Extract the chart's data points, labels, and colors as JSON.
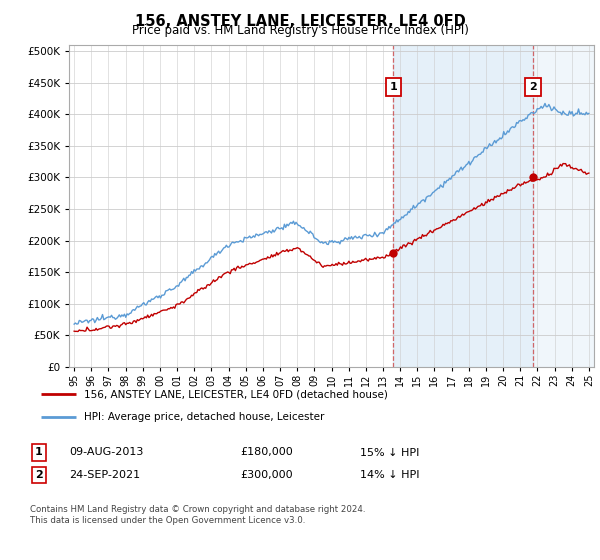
{
  "title": "156, ANSTEY LANE, LEICESTER, LE4 0FD",
  "subtitle": "Price paid vs. HM Land Registry's House Price Index (HPI)",
  "yticks": [
    0,
    50000,
    100000,
    150000,
    200000,
    250000,
    300000,
    350000,
    400000,
    450000,
    500000
  ],
  "ylim": [
    0,
    510000
  ],
  "xlim_start": 1994.7,
  "xlim_end": 2025.3,
  "hpi_color": "#5b9bd5",
  "hpi_fill_color": "#daeaf7",
  "price_color": "#c00000",
  "marker1_x": 2013.6,
  "marker1_y": 180000,
  "marker2_x": 2021.73,
  "marker2_y": 300000,
  "legend_line1": "156, ANSTEY LANE, LEICESTER, LE4 0FD (detached house)",
  "legend_line2": "HPI: Average price, detached house, Leicester",
  "table_row1": [
    "1",
    "09-AUG-2013",
    "£180,000",
    "15% ↓ HPI"
  ],
  "table_row2": [
    "2",
    "24-SEP-2021",
    "£300,000",
    "14% ↓ HPI"
  ],
  "footnote": "Contains HM Land Registry data © Crown copyright and database right 2024.\nThis data is licensed under the Open Government Licence v3.0.",
  "background_color": "#ffffff",
  "grid_color": "#cccccc"
}
